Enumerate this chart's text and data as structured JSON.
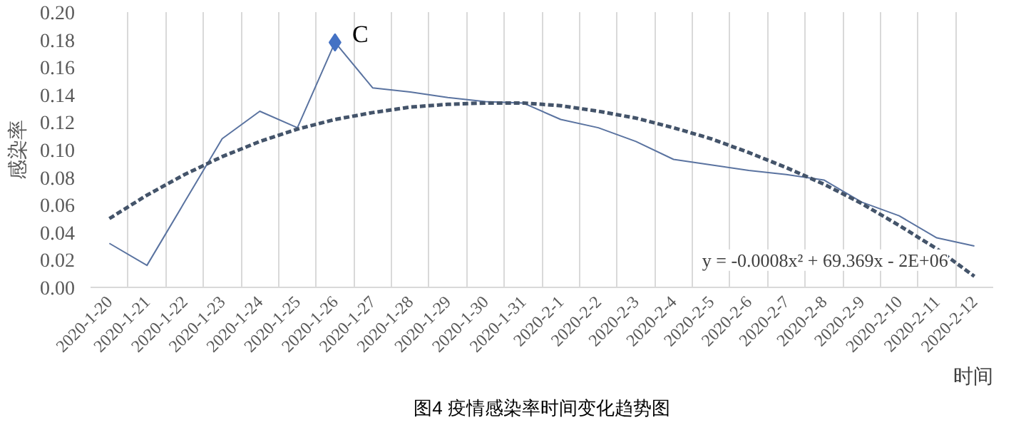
{
  "chart_data": {
    "type": "line",
    "title": "图4 疫情感染率时间变化趋势图",
    "xlabel": "时间",
    "ylabel": "感染率",
    "categories": [
      "2020-1-20",
      "2020-1-21",
      "2020-1-22",
      "2020-1-23",
      "2020-1-24",
      "2020-1-25",
      "2020-1-26",
      "2020-1-27",
      "2020-1-28",
      "2020-1-29",
      "2020-1-30",
      "2020-1-31",
      "2020-2-1",
      "2020-2-2",
      "2020-2-3",
      "2020-2-4",
      "2020-2-5",
      "2020-2-6",
      "2020-2-7",
      "2020-2-8",
      "2020-2-9",
      "2020-2-10",
      "2020-2-11",
      "2020-2-12"
    ],
    "series": [
      {
        "color": "#5a73a0",
        "line_style": "solid",
        "values": [
          0.032,
          0.016,
          0.062,
          0.108,
          0.128,
          0.116,
          0.178,
          0.145,
          0.142,
          0.138,
          0.135,
          0.134,
          0.122,
          0.116,
          0.106,
          0.093,
          0.089,
          0.085,
          0.082,
          0.078,
          0.062,
          0.052,
          0.036,
          0.03
        ]
      },
      {
        "color": "#44546a",
        "line_style": "dashed",
        "values": [
          0.05,
          0.067,
          0.082,
          0.095,
          0.106,
          0.115,
          0.122,
          0.127,
          0.131,
          0.133,
          0.134,
          0.134,
          0.132,
          0.128,
          0.123,
          0.116,
          0.108,
          0.098,
          0.087,
          0.075,
          0.061,
          0.045,
          0.028,
          0.008
        ]
      },
      {
        "type": "scatter",
        "marker": "diamond",
        "color": "#4472c4",
        "x": [
          "2020-1-26"
        ],
        "values": [
          0.178
        ]
      }
    ],
    "annotations": [
      {
        "text": "C",
        "x": "2020-1-26",
        "y": 0.178
      },
      "y = -0.0008x² + 69.369x - 2E+06"
    ],
    "ylim": [
      0,
      0.2
    ],
    "yticks": [
      {
        "value": 0,
        "label": "0.00"
      },
      {
        "value": 0.02,
        "label": "0.02"
      },
      {
        "value": 0.04,
        "label": "0.04"
      },
      {
        "value": 0.06,
        "label": "0.06"
      },
      {
        "value": 0.08,
        "label": "0.08"
      },
      {
        "value": 0.1,
        "label": "0.10"
      },
      {
        "value": 0.12,
        "label": "0.12"
      },
      {
        "value": 0.14,
        "label": "0.14"
      },
      {
        "value": 0.16,
        "label": "0.16"
      },
      {
        "value": 0.18,
        "label": "0.18"
      },
      {
        "value": 0.2,
        "label": "0.20"
      }
    ],
    "grid": "x"
  }
}
